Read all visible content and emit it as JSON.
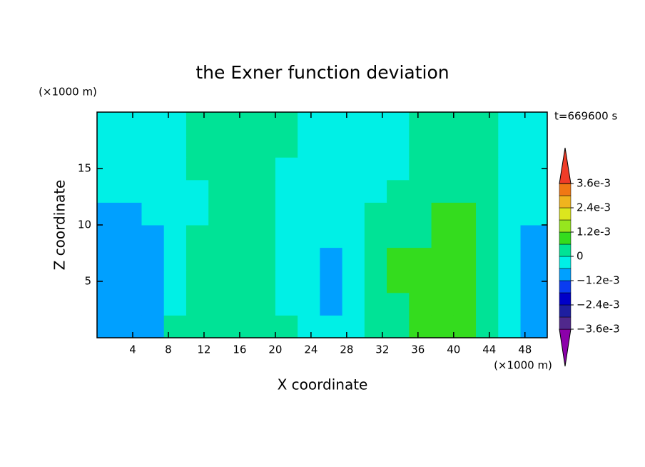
{
  "chart_data": {
    "type": "contour",
    "title": "the Exner function deviation",
    "x_label": "X coordinate",
    "y_label": "Z coordinate",
    "x_unit": "(×1000 m)",
    "y_unit": "(×1000 m)",
    "time_label": "t=669600 s",
    "xlim": [
      0,
      50.5
    ],
    "ylim": [
      0,
      20
    ],
    "xticks": [
      4,
      8,
      12,
      16,
      20,
      24,
      28,
      32,
      36,
      40,
      44,
      48
    ],
    "yticks": [
      5,
      10,
      15
    ],
    "levels": [
      -0.0036,
      -0.003,
      -0.0024,
      -0.0018,
      -0.0012,
      -0.0006,
      0,
      0.0006,
      0.0012,
      0.0018,
      0.0024,
      0.003,
      0.0036
    ],
    "colors": [
      "#8c00aa",
      "#50288c",
      "#1e1ea0",
      "#0000c8",
      "#0a3cf0",
      "#00a0ff",
      "#00f0e6",
      "#00e396",
      "#34dc1e",
      "#96e61e",
      "#dce61e",
      "#f0b41e",
      "#f07814",
      "#f03c28",
      "#f0a0a0"
    ],
    "colorbar_ticks": [
      {
        "value": 0.0036,
        "label": "3.6e-3"
      },
      {
        "value": 0.0024,
        "label": "2.4e-3"
      },
      {
        "value": 0.0012,
        "label": "1.2e-3"
      },
      0,
      {
        "value": -0.0012,
        "label": "−1.2e-3"
      },
      {
        "value": -0.0024,
        "label": "−2.4e-3"
      },
      {
        "value": -0.0036,
        "label": "−3.6e-3"
      }
    ],
    "field": {
      "x": [
        1.25,
        3.75,
        6.25,
        8.75,
        11.25,
        13.75,
        16.25,
        18.75,
        21.25,
        23.75,
        26.25,
        28.75,
        31.25,
        33.75,
        36.25,
        38.75,
        41.25,
        43.75,
        46.25,
        48.75
      ],
      "y": [
        1,
        3,
        5,
        7,
        9,
        11,
        13,
        15,
        17,
        19
      ],
      "z": [
        [
          -0.0009,
          -0.0009,
          -0.0009,
          0.0003,
          0.0003,
          0.0003,
          0.0003,
          0.0003,
          0.0003,
          -0.0003,
          -0.0003,
          -0.0003,
          0.0003,
          0.0003,
          0.0009,
          0.0009,
          0.0009,
          0.0003,
          -0.0003,
          -0.0009
        ],
        [
          -0.0009,
          -0.0009,
          -0.0009,
          -0.0003,
          0.0003,
          0.0003,
          0.0003,
          0.0003,
          -0.0003,
          -0.0003,
          -0.0009,
          -0.0003,
          0.0003,
          0.0003,
          0.0009,
          0.0009,
          0.0009,
          0.0003,
          -0.0003,
          -0.0009
        ],
        [
          -0.0009,
          -0.0009,
          -0.0009,
          -0.0003,
          0.0003,
          0.0003,
          0.0003,
          0.0003,
          -0.0003,
          -0.0003,
          -0.0009,
          -0.0003,
          0.0003,
          0.0009,
          0.0009,
          0.0009,
          0.0009,
          0.0003,
          -0.0003,
          -0.0009
        ],
        [
          -0.0009,
          -0.0009,
          -0.0009,
          -0.0003,
          0.0003,
          0.0003,
          0.0003,
          0.0003,
          -0.0003,
          -0.0003,
          -0.0009,
          -0.0003,
          0.0003,
          0.0009,
          0.0009,
          0.0009,
          0.0009,
          0.0003,
          -0.0003,
          -0.0009
        ],
        [
          -0.0009,
          -0.0009,
          -0.0009,
          -0.0003,
          0.0003,
          0.0003,
          0.0003,
          0.0003,
          -0.0003,
          -0.0003,
          -0.0003,
          -0.0003,
          0.0003,
          0.0003,
          0.0003,
          0.0009,
          0.0009,
          0.0003,
          -0.0003,
          -0.0009
        ],
        [
          -0.0009,
          -0.0009,
          -0.0003,
          -0.0003,
          -0.0003,
          0.0003,
          0.0003,
          0.0003,
          -0.0003,
          -0.0003,
          -0.0003,
          -0.0003,
          0.0003,
          0.0003,
          0.0003,
          0.0009,
          0.0009,
          0.0003,
          -0.0003,
          -0.0003
        ],
        [
          -0.0003,
          -0.0003,
          -0.0003,
          -0.0003,
          -0.0003,
          0.0003,
          0.0003,
          0.0003,
          -0.0003,
          -0.0003,
          -0.0003,
          -0.0003,
          -0.0003,
          0.0003,
          0.0003,
          0.0003,
          0.0003,
          0.0003,
          -0.0003,
          -0.0003
        ],
        [
          -0.0003,
          -0.0003,
          -0.0003,
          -0.0003,
          0.0003,
          0.0003,
          0.0003,
          0.0003,
          -0.0003,
          -0.0003,
          -0.0003,
          -0.0003,
          -0.0003,
          -0.0003,
          0.0003,
          0.0003,
          0.0003,
          0.0003,
          -0.0003,
          -0.0003
        ],
        [
          -0.0003,
          -0.0003,
          -0.0003,
          -0.0003,
          0.0003,
          0.0003,
          0.0003,
          0.0003,
          0.0003,
          -0.0003,
          -0.0003,
          -0.0003,
          -0.0003,
          -0.0003,
          0.0003,
          0.0003,
          0.0003,
          0.0003,
          -0.0003,
          -0.0003
        ],
        [
          -0.0003,
          -0.0003,
          -0.0003,
          -0.0003,
          0.0003,
          0.0003,
          0.0003,
          0.0003,
          0.0003,
          -0.0003,
          -0.0003,
          -0.0003,
          -0.0003,
          -0.0003,
          0.0003,
          0.0003,
          0.0003,
          0.0003,
          -0.0003,
          -0.0003
        ]
      ]
    }
  }
}
